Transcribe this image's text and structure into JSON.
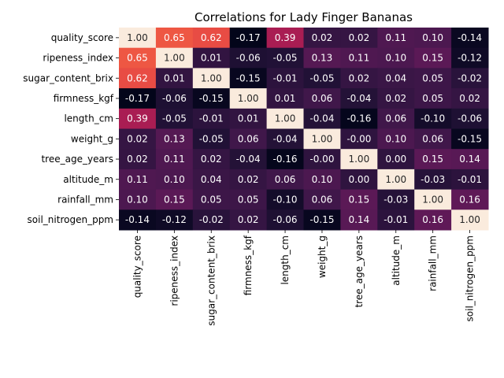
{
  "chart_data": {
    "type": "heatmap",
    "title": "Correlations for Lady Finger Bananas",
    "xlabel": "",
    "ylabel": "",
    "labels": [
      "quality_score",
      "ripeness_index",
      "sugar_content_brix",
      "firmness_kgf",
      "length_cm",
      "weight_g",
      "tree_age_years",
      "altitude_m",
      "rainfall_mm",
      "soil_nitrogen_ppm"
    ],
    "matrix": [
      [
        1.0,
        0.65,
        0.62,
        -0.17,
        0.39,
        0.02,
        0.02,
        0.11,
        0.1,
        -0.14
      ],
      [
        0.65,
        1.0,
        0.01,
        -0.06,
        -0.05,
        0.13,
        0.11,
        0.1,
        0.15,
        -0.12
      ],
      [
        0.62,
        0.01,
        1.0,
        -0.15,
        -0.01,
        -0.05,
        0.02,
        0.04,
        0.05,
        -0.02
      ],
      [
        -0.17,
        -0.06,
        -0.15,
        1.0,
        0.01,
        0.06,
        -0.04,
        0.02,
        0.05,
        0.02
      ],
      [
        0.39,
        -0.05,
        -0.01,
        0.01,
        1.0,
        -0.04,
        -0.16,
        0.06,
        -0.1,
        -0.06
      ],
      [
        0.02,
        0.13,
        -0.05,
        0.06,
        -0.04,
        1.0,
        -0.0,
        0.1,
        0.06,
        -0.15
      ],
      [
        0.02,
        0.11,
        0.02,
        -0.04,
        -0.16,
        -0.0,
        1.0,
        0.0,
        0.15,
        0.14
      ],
      [
        0.11,
        0.1,
        0.04,
        0.02,
        0.06,
        0.1,
        0.0,
        1.0,
        -0.03,
        -0.01
      ],
      [
        0.1,
        0.15,
        0.05,
        0.05,
        -0.1,
        0.06,
        0.15,
        -0.03,
        1.0,
        0.16
      ],
      [
        -0.14,
        -0.12,
        -0.02,
        0.02,
        -0.06,
        -0.15,
        0.14,
        -0.01,
        0.16,
        1.0
      ]
    ],
    "value_format": "0.00",
    "vmin": -0.17,
    "vmax": 1.0,
    "colormap": "rocket",
    "colorbar": false,
    "annotations": true
  }
}
